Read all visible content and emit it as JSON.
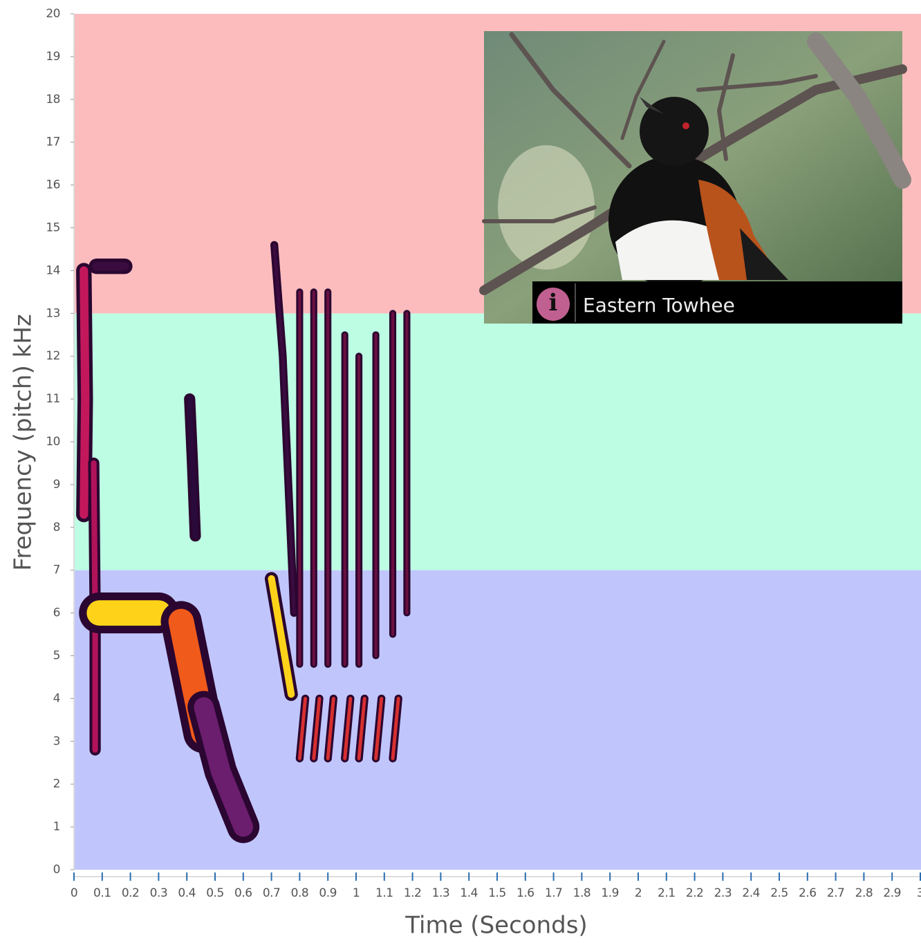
{
  "chart_data": {
    "type": "spectrogram",
    "x_label": "Time (Seconds)",
    "y_label": "Frequency (pitch) kHz",
    "xlim": [
      0,
      3
    ],
    "ylim": [
      0,
      20
    ],
    "xticks": [
      0,
      0.1,
      0.2,
      0.3,
      0.4,
      0.5,
      0.6,
      0.7,
      0.8,
      0.9,
      1,
      1.1,
      1.2,
      1.3,
      1.4,
      1.5,
      1.6,
      1.7,
      1.8,
      1.9,
      2,
      2.1,
      2.2,
      2.3,
      2.4,
      2.5,
      2.6,
      2.7,
      2.8,
      2.9,
      3
    ],
    "yticks": [
      0,
      1,
      2,
      3,
      4,
      5,
      6,
      7,
      8,
      9,
      10,
      11,
      12,
      13,
      14,
      15,
      16,
      17,
      18,
      19,
      20
    ],
    "bands": [
      {
        "range": [
          0,
          7
        ],
        "color": "#c0c6fc"
      },
      {
        "range": [
          7,
          13
        ],
        "color": "#bdfde3"
      },
      {
        "range": [
          13,
          20
        ],
        "color": "#fcbcbe"
      }
    ],
    "strokes": [
      {
        "x": [
          0.035,
          0.04,
          0.035
        ],
        "y": [
          14,
          11,
          8.3
        ],
        "width": 0.03,
        "color": "#c2185b"
      },
      {
        "x": [
          0.07,
          0.075,
          0.075
        ],
        "y": [
          9.5,
          6,
          2.8
        ],
        "width": 0.02,
        "color": "#b0135a"
      },
      {
        "x": [
          0.09,
          0.3
        ],
        "y": [
          6,
          6
        ],
        "width": 0.09,
        "color": "#ffd21a"
      },
      {
        "x": [
          0.08,
          0.18
        ],
        "y": [
          14.1,
          14.1
        ],
        "width": 0.03,
        "color": "#3a0b3f"
      },
      {
        "x": [
          0.38,
          0.42,
          0.46
        ],
        "y": [
          5.8,
          4.5,
          3.2
        ],
        "width": 0.09,
        "color": "#f05a1a"
      },
      {
        "x": [
          0.46,
          0.52,
          0.6
        ],
        "y": [
          3.8,
          2.3,
          1
        ],
        "width": 0.07,
        "color": "#6b1d6e"
      },
      {
        "x": [
          0.41,
          0.42,
          0.43
        ],
        "y": [
          11,
          9.5,
          7.8
        ],
        "width": 0.02,
        "color": "#2a0a3a"
      },
      {
        "x": [
          0.7,
          0.77
        ],
        "y": [
          6.8,
          4.1
        ],
        "width": 0.025,
        "color": "#ffd21a"
      },
      {
        "x": [
          0.71,
          0.74,
          0.78
        ],
        "y": [
          14.6,
          12,
          6
        ],
        "width": 0.012,
        "color": "#3a0b3f"
      },
      {
        "x": [
          0.8,
          0.8
        ],
        "y": [
          13.5,
          4.8
        ],
        "width": 0.01,
        "color": "#6a1040"
      },
      {
        "x": [
          0.85,
          0.85
        ],
        "y": [
          13.5,
          4.8
        ],
        "width": 0.01,
        "color": "#6a1040"
      },
      {
        "x": [
          0.9,
          0.9
        ],
        "y": [
          13.5,
          4.8
        ],
        "width": 0.01,
        "color": "#6a1040"
      },
      {
        "x": [
          0.96,
          0.96
        ],
        "y": [
          12.5,
          4.8
        ],
        "width": 0.01,
        "color": "#6a1040"
      },
      {
        "x": [
          1.01,
          1.01
        ],
        "y": [
          12,
          4.8
        ],
        "width": 0.01,
        "color": "#6a1040"
      },
      {
        "x": [
          1.07,
          1.07
        ],
        "y": [
          12.5,
          5
        ],
        "width": 0.01,
        "color": "#6a1040"
      },
      {
        "x": [
          1.13,
          1.13
        ],
        "y": [
          13,
          5.5
        ],
        "width": 0.01,
        "color": "#6a1040"
      },
      {
        "x": [
          1.18,
          1.18
        ],
        "y": [
          13,
          6
        ],
        "width": 0.01,
        "color": "#6a1040"
      },
      {
        "x": [
          0.8,
          0.82
        ],
        "y": [
          2.6,
          4
        ],
        "width": 0.012,
        "color": "#d63030"
      },
      {
        "x": [
          0.85,
          0.87
        ],
        "y": [
          2.6,
          4
        ],
        "width": 0.012,
        "color": "#d63030"
      },
      {
        "x": [
          0.9,
          0.92
        ],
        "y": [
          2.6,
          4
        ],
        "width": 0.012,
        "color": "#d63030"
      },
      {
        "x": [
          0.96,
          0.98
        ],
        "y": [
          2.6,
          4
        ],
        "width": 0.012,
        "color": "#d63030"
      },
      {
        "x": [
          1.01,
          1.03
        ],
        "y": [
          2.6,
          4
        ],
        "width": 0.012,
        "color": "#d63030"
      },
      {
        "x": [
          1.07,
          1.09
        ],
        "y": [
          2.6,
          4
        ],
        "width": 0.012,
        "color": "#d63030"
      },
      {
        "x": [
          1.13,
          1.15
        ],
        "y": [
          2.6,
          4
        ],
        "width": 0.012,
        "color": "#d63030"
      }
    ]
  },
  "inset": {
    "icon": "i",
    "label": "Eastern Towhee"
  }
}
